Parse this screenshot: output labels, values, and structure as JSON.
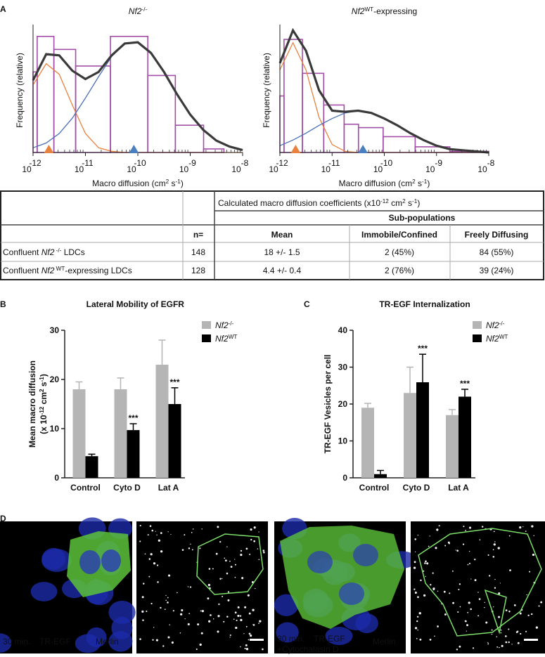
{
  "panel_labels": [
    "A",
    "B",
    "C",
    "D"
  ],
  "chart_data": [
    {
      "type": "histogram",
      "title": [
        "Nf2",
        "-/-"
      ],
      "xlabel": [
        "Macro diffusion (cm",
        "2",
        " s",
        "-1",
        ")"
      ],
      "ylabel": "Frequency (relative)",
      "xscale": "log",
      "xlim": [
        1e-12,
        1e-08
      ],
      "xticks": [
        {
          "value": 1e-12,
          "label": "10",
          "exponent": "-12"
        },
        {
          "value": 1e-11,
          "label": "10",
          "exponent": "-11"
        },
        {
          "value": 1e-10,
          "label": "10",
          "exponent": "-10"
        },
        {
          "value": 1e-09,
          "label": "10",
          "exponent": "-9"
        },
        {
          "value": 1e-08,
          "label": "10",
          "exponent": "-8"
        }
      ],
      "ylim": [
        0,
        1.05
      ],
      "color": "#a24ea8",
      "bins": [
        1e-12,
        1.2e-12,
        2.5e-12,
        6.5e-12,
        3e-11,
        1.55e-10,
        5.2e-10,
        1.8e-09,
        4.4e-09
      ],
      "counts": [
        0.68,
        0.98,
        0.87,
        0.73,
        0.98,
        0.65,
        0.23,
        0.03
      ],
      "curves": {
        "x": [
          1e-12,
          1.78e-12,
          3.16e-12,
          5.62e-12,
          1e-11,
          1.78e-11,
          3.16e-11,
          5.62e-11,
          1e-10,
          1.78e-10,
          3.16e-10,
          5.62e-10,
          1e-09,
          1.78e-09,
          3.16e-09,
          5.62e-09,
          1e-08
        ],
        "series": [
          {
            "color": "#e8823f",
            "values": [
              0.57,
              0.75,
              0.66,
              0.4,
              0.16,
              0.04,
              0.01,
              0,
              0,
              0,
              0,
              0,
              0,
              0,
              0,
              0,
              0
            ]
          },
          {
            "color": "#4a6fb5",
            "values": [
              0.04,
              0.08,
              0.16,
              0.29,
              0.46,
              0.64,
              0.81,
              0.92,
              0.93,
              0.84,
              0.68,
              0.49,
              0.32,
              0.19,
              0.1,
              0.05,
              0.02
            ]
          },
          {
            "color": "#3a3a3a",
            "values": [
              0.61,
              0.83,
              0.82,
              0.69,
              0.62,
              0.68,
              0.82,
              0.92,
              0.93,
              0.84,
              0.68,
              0.49,
              0.32,
              0.19,
              0.1,
              0.05,
              0.02
            ]
          }
        ]
      },
      "markers": [
        {
          "x": 2e-12,
          "color": "#e8823f"
        },
        {
          "x": 8.4e-11,
          "color": "#4a80c0"
        }
      ]
    },
    {
      "type": "histogram",
      "title": [
        "Nf2",
        "WT",
        "-expressing"
      ],
      "xlabel": [
        "Macro diffusion (cm",
        "2",
        " s",
        "-1",
        ")"
      ],
      "ylabel": "Frequency (relative)",
      "xscale": "log",
      "xlim": [
        1e-12,
        1e-08
      ],
      "xticks": [
        {
          "value": 1e-12,
          "label": "10",
          "exponent": "-12"
        },
        {
          "value": 1e-11,
          "label": "10",
          "exponent": "-11"
        },
        {
          "value": 1e-10,
          "label": "10",
          "exponent": "-10"
        },
        {
          "value": 1e-09,
          "label": "10",
          "exponent": "-9"
        },
        {
          "value": 1e-08,
          "label": "10",
          "exponent": "-8"
        }
      ],
      "ylim": [
        0,
        1.1
      ],
      "color": "#a24ea8",
      "bins": [
        1e-12,
        1.2e-12,
        2.7e-12,
        6.9e-12,
        1.7e-11,
        3.2e-11,
        9.5e-11,
        3.9e-10,
        1.8e-09,
        1e-08
      ],
      "counts": [
        0.5,
        1.0,
        0.7,
        0.42,
        0.25,
        0.22,
        0.14,
        0.05,
        0.01
      ],
      "curves": {
        "x": [
          1e-12,
          1.78e-12,
          3.16e-12,
          5.62e-12,
          1e-11,
          1.78e-11,
          3.16e-11,
          5.62e-11,
          1e-10,
          1.78e-10,
          3.16e-10,
          5.62e-10,
          1e-09,
          1.78e-09,
          3.16e-09,
          5.62e-09,
          1e-08
        ],
        "series": [
          {
            "color": "#e8823f",
            "values": [
              0.73,
              0.97,
              0.73,
              0.31,
              0.07,
              0.01,
              0,
              0,
              0,
              0,
              0,
              0,
              0,
              0,
              0,
              0,
              0
            ]
          },
          {
            "color": "#4a6fb5",
            "values": [
              0.06,
              0.11,
              0.17,
              0.24,
              0.3,
              0.35,
              0.37,
              0.35,
              0.3,
              0.24,
              0.17,
              0.11,
              0.06,
              0.03,
              0.02,
              0.01,
              0
            ]
          },
          {
            "color": "#3a3a3a",
            "values": [
              0.79,
              1.08,
              0.9,
              0.55,
              0.37,
              0.36,
              0.37,
              0.35,
              0.3,
              0.24,
              0.17,
              0.11,
              0.06,
              0.03,
              0.02,
              0.01,
              0
            ]
          }
        ]
      },
      "markers": [
        {
          "x": 2e-12,
          "color": "#e8823f"
        },
        {
          "x": 3.9e-11,
          "color": "#4a80c0"
        }
      ]
    },
    {
      "type": "bar",
      "title": "Lateral Mobility of EGFR",
      "ylabel": [
        "Mean macro diffusion",
        "(x 10",
        "-12",
        " cm",
        "2",
        " s",
        "-1",
        ")"
      ],
      "categories": [
        "Control",
        "Cyto D",
        "Lat A"
      ],
      "series": [
        {
          "name": [
            "Nf2",
            "-/-"
          ],
          "color": "#b5b5b5",
          "values": [
            18,
            18,
            23
          ],
          "errors": [
            1.5,
            2.3,
            5
          ]
        },
        {
          "name": [
            "Nf2",
            "WT"
          ],
          "color": "#000000",
          "values": [
            4.4,
            9.7,
            15
          ],
          "errors": [
            0.4,
            1.3,
            3.3
          ],
          "annotations": [
            null,
            "***",
            "***"
          ]
        }
      ],
      "ylim": [
        0,
        30
      ],
      "yticks": [
        0,
        10,
        20,
        30
      ]
    },
    {
      "type": "bar",
      "title": "TR-EGF Internalization",
      "ylabel": [
        "TR-EGF Vesicles per cell"
      ],
      "categories": [
        "Control",
        "Cyto D",
        "Lat A"
      ],
      "series": [
        {
          "name": [
            "Nf2",
            "-/-"
          ],
          "color": "#b5b5b5",
          "values": [
            19,
            23,
            17
          ],
          "errors": [
            1.2,
            7,
            1.5
          ]
        },
        {
          "name": [
            "Nf2",
            "WT"
          ],
          "color": "#000000",
          "values": [
            1,
            25.9,
            22
          ],
          "errors": [
            1,
            7.6,
            2
          ],
          "annotations": [
            null,
            "***",
            "***"
          ]
        }
      ],
      "ylim": [
        0,
        40
      ],
      "yticks": [
        0,
        10,
        20,
        30,
        40
      ]
    }
  ],
  "table": {
    "caption": [
      "Calculated macro diffusion coefficients (x10",
      "-12",
      " cm",
      "2",
      " s",
      "-1",
      ")"
    ],
    "group": "Sub-populations",
    "columns": [
      "n=",
      "Mean",
      "Immobile/Confined",
      "Freely Diffusing"
    ],
    "rows": [
      {
        "label": [
          "Confluent ",
          "Nf2",
          " -/-",
          " LDCs"
        ],
        "cells": [
          "148",
          "18 +/- 1.5",
          "2 (45%)",
          "84 (55%)"
        ]
      },
      {
        "label": [
          "Confluent ",
          "Nf2",
          " WT",
          "-expressing LDCs"
        ],
        "cells": [
          "128",
          "4.4 +/- 0.4",
          "2 (76%)",
          "39 (24%)"
        ]
      }
    ]
  },
  "image_captions": {
    "left": [
      "30 min. ",
      "TR-EGF",
      "Merlin"
    ],
    "right": [
      "30 min. ",
      "TR-EGF",
      "+Cytochalasin D",
      "Merlin"
    ]
  }
}
